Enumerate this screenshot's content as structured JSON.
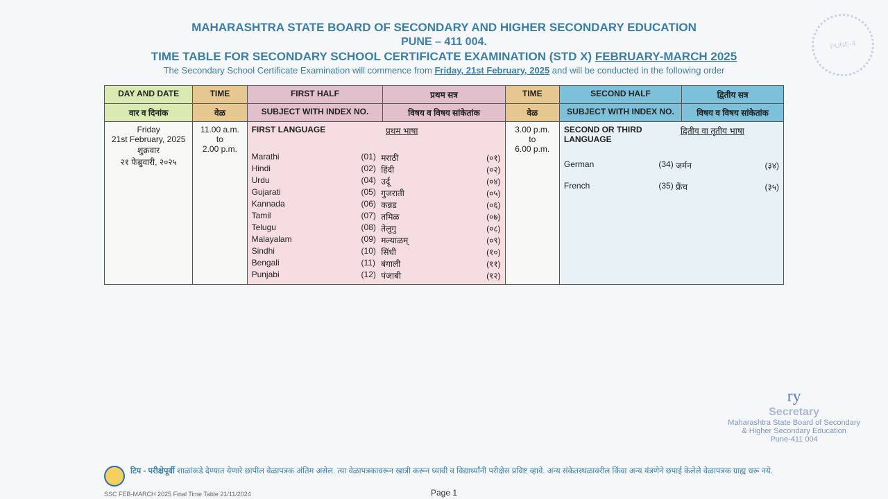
{
  "header": {
    "board": "MAHARASHTRA STATE BOARD OF SECONDARY AND HIGHER SECONDARY EDUCATION",
    "city": "PUNE – 411 004.",
    "title_prefix": "TIME TABLE FOR SECONDARY SCHOOL CERTIFICATE EXAMINATION (STD X) ",
    "title_range": "FEBRUARY-MARCH 2025",
    "sub_prefix": "The Secondary School Certificate Examination will commence from ",
    "sub_date": "Friday, 21st February, 2025",
    "sub_suffix": " and will be conducted in the following order"
  },
  "table": {
    "col_day_en": "DAY AND DATE",
    "col_day_dev": "वार व दिनांक",
    "col_time_en": "TIME",
    "col_time_dev": "वेळ",
    "col_first_en": "FIRST HALF",
    "col_first_dev": "प्रथम सत्र",
    "col_subj_en": "SUBJECT WITH INDEX NO.",
    "col_subj_dev": "विषय व विषय सांकेतांक",
    "col_second_en": "SECOND HALF",
    "col_second_dev": "द्वितीय सत्र"
  },
  "row": {
    "day_en": "Friday",
    "date_en": "21st February, 2025",
    "day_dev": "शुक्रवार",
    "date_dev": "२१ फेब्रुवारी, २०२५",
    "time1_a": "11.00 a.m.",
    "time1_b": "to",
    "time1_c": "2.00 p.m.",
    "time2_a": "3.00 p.m.",
    "time2_b": "to",
    "time2_c": "6.00 p.m.",
    "first_heading_en": "FIRST LANGUAGE",
    "first_heading_dev": "प्रथम भाषा",
    "subjects_first": [
      {
        "en": "Marathi",
        "c1": "(01)",
        "dev": "मराठी",
        "c2": "(०१)"
      },
      {
        "en": "Hindi",
        "c1": "(02)",
        "dev": "हिंदी",
        "c2": "(०२)"
      },
      {
        "en": "Urdu",
        "c1": "(04)",
        "dev": "उर्दू",
        "c2": "(०४)"
      },
      {
        "en": "Gujarati",
        "c1": "(05)",
        "dev": "गुजराती",
        "c2": "(०५)"
      },
      {
        "en": "Kannada",
        "c1": "(06)",
        "dev": "कन्नड",
        "c2": "(०६)"
      },
      {
        "en": "Tamil",
        "c1": "(07)",
        "dev": "तमिळ",
        "c2": "(०७)"
      },
      {
        "en": "Telugu",
        "c1": "(08)",
        "dev": "तेलुगु",
        "c2": "(०८)"
      },
      {
        "en": "Malayalam",
        "c1": "(09)",
        "dev": "मल्याळम्",
        "c2": "(०९)"
      },
      {
        "en": "Sindhi",
        "c1": "(10)",
        "dev": "सिंधी",
        "c2": "(१०)"
      },
      {
        "en": "Bengali",
        "c1": "(11)",
        "dev": "बंगाली",
        "c2": "(११)"
      },
      {
        "en": "Punjabi",
        "c1": "(12)",
        "dev": "पंजाबी",
        "c2": "(१२)"
      }
    ],
    "second_heading_en": "SECOND OR THIRD LANGUAGE",
    "second_heading_dev": "द्वितीय वा तृतीय भाषा",
    "subjects_second": [
      {
        "en": "German",
        "c1": "(34)",
        "dev": "जर्मन",
        "c2": "(३४)"
      },
      {
        "en": "",
        "c1": "",
        "dev": "",
        "c2": ""
      },
      {
        "en": "French",
        "c1": "(35)",
        "dev": "फ्रेंच",
        "c2": "(३५)"
      }
    ]
  },
  "signature": {
    "scribble": "ry",
    "title": "Secretary",
    "line1": "Maharashtra State Board of Secondary",
    "line2": "& Higher Secondary Education",
    "line3": "Pune-411 004"
  },
  "footer": {
    "note_label": "टिप - परीक्षेपूर्वी ",
    "note_text": "शाळांकडे देण्यात येणारे छापील वेळापत्रक अंतिम असेल. त्या वेळापत्रकावरून खात्री करून घ्यावी व विद्यार्थ्यांनी परीक्षेस प्रविष्ट व्हावे. अन्य संकेतस्थळावरील किंवा अन्य यंत्रणेने छपाई केलेले वेळापत्रक ग्राह्य धरू नये.",
    "page": "Page 1",
    "docfoot": "SSC FEB-MARCH 2025 Final Time Table    21/11/2024"
  },
  "stamp": {
    "text": "PUNE-4"
  }
}
